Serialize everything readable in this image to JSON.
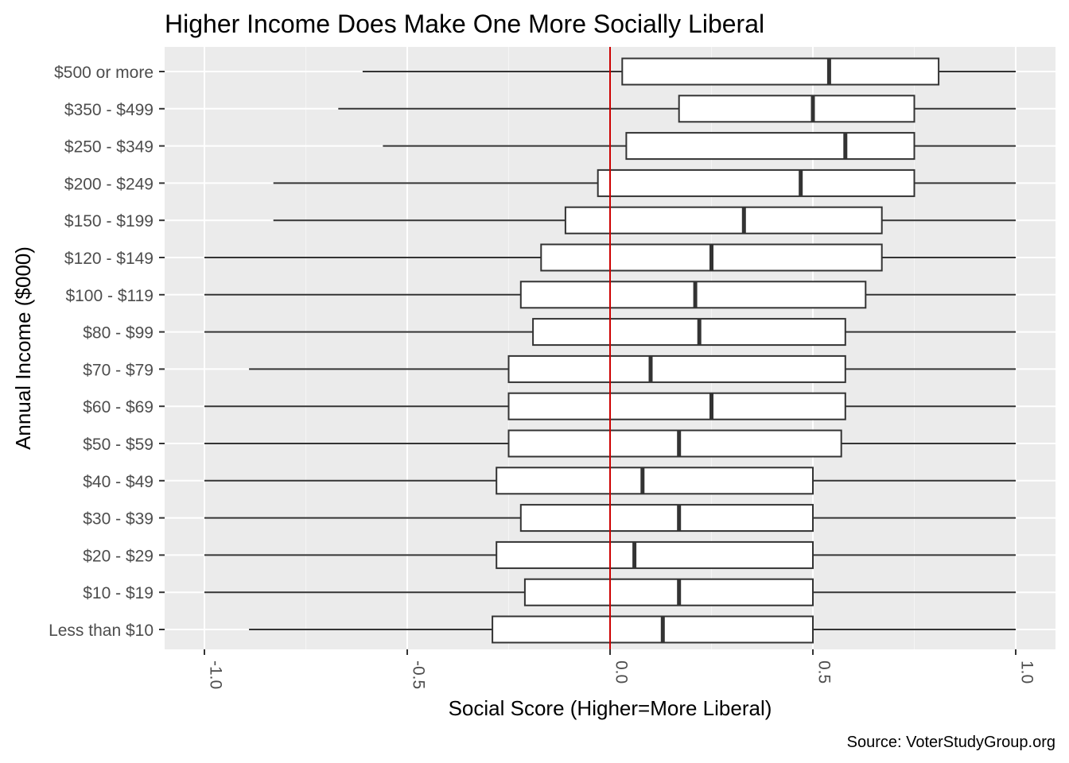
{
  "chart_data": {
    "type": "boxplot",
    "title": "Higher Income Does Make One More Socially Liberal",
    "xlabel": "Social Score (Higher=More Liberal)",
    "ylabel": "Annual Income ($000)",
    "caption": "Source: VoterStudyGroup.org",
    "xlim": [
      -1.1,
      1.1
    ],
    "x_ticks": [
      -1.0,
      -0.5,
      0.0,
      0.5,
      1.0
    ],
    "x_tick_labels": [
      "-1.0",
      "-0.5",
      "0.0",
      "0.5",
      "1.0"
    ],
    "reference_line": {
      "x": 0,
      "color": "#cc0000"
    },
    "grid": true,
    "panel_background": "#ebebeb",
    "box_fill": "#ffffff",
    "box_stroke": "#333333",
    "categories": [
      "$500 or more",
      "$350 - $499",
      "$250 - $349",
      "$200 - $249",
      "$150 - $199",
      "$120 - $149",
      "$100 - $119",
      "$80 - $99",
      "$70 - $79",
      "$60 - $69",
      "$50 - $59",
      "$40 - $49",
      "$30 - $39",
      "$20 - $29",
      "$10 - $19",
      "Less than $10"
    ],
    "boxes": [
      {
        "whisker_low": -0.61,
        "q1": 0.03,
        "median": 0.54,
        "q3": 0.81,
        "whisker_high": 1.0
      },
      {
        "whisker_low": -0.67,
        "q1": 0.17,
        "median": 0.5,
        "q3": 0.75,
        "whisker_high": 1.0
      },
      {
        "whisker_low": -0.56,
        "q1": 0.04,
        "median": 0.58,
        "q3": 0.75,
        "whisker_high": 1.0
      },
      {
        "whisker_low": -0.83,
        "q1": -0.03,
        "median": 0.47,
        "q3": 0.75,
        "whisker_high": 1.0
      },
      {
        "whisker_low": -0.83,
        "q1": -0.11,
        "median": 0.33,
        "q3": 0.67,
        "whisker_high": 1.0
      },
      {
        "whisker_low": -1.0,
        "q1": -0.17,
        "median": 0.25,
        "q3": 0.67,
        "whisker_high": 1.0
      },
      {
        "whisker_low": -1.0,
        "q1": -0.22,
        "median": 0.21,
        "q3": 0.63,
        "whisker_high": 1.0
      },
      {
        "whisker_low": -1.0,
        "q1": -0.19,
        "median": 0.22,
        "q3": 0.58,
        "whisker_high": 1.0
      },
      {
        "whisker_low": -0.89,
        "q1": -0.25,
        "median": 0.1,
        "q3": 0.58,
        "whisker_high": 1.0
      },
      {
        "whisker_low": -1.0,
        "q1": -0.25,
        "median": 0.25,
        "q3": 0.58,
        "whisker_high": 1.0
      },
      {
        "whisker_low": -1.0,
        "q1": -0.25,
        "median": 0.17,
        "q3": 0.57,
        "whisker_high": 1.0
      },
      {
        "whisker_low": -1.0,
        "q1": -0.28,
        "median": 0.08,
        "q3": 0.5,
        "whisker_high": 1.0
      },
      {
        "whisker_low": -1.0,
        "q1": -0.22,
        "median": 0.17,
        "q3": 0.5,
        "whisker_high": 1.0
      },
      {
        "whisker_low": -1.0,
        "q1": -0.28,
        "median": 0.06,
        "q3": 0.5,
        "whisker_high": 1.0
      },
      {
        "whisker_low": -1.0,
        "q1": -0.21,
        "median": 0.17,
        "q3": 0.5,
        "whisker_high": 1.0
      },
      {
        "whisker_low": -0.89,
        "q1": -0.29,
        "median": 0.13,
        "q3": 0.5,
        "whisker_high": 1.0
      }
    ]
  }
}
